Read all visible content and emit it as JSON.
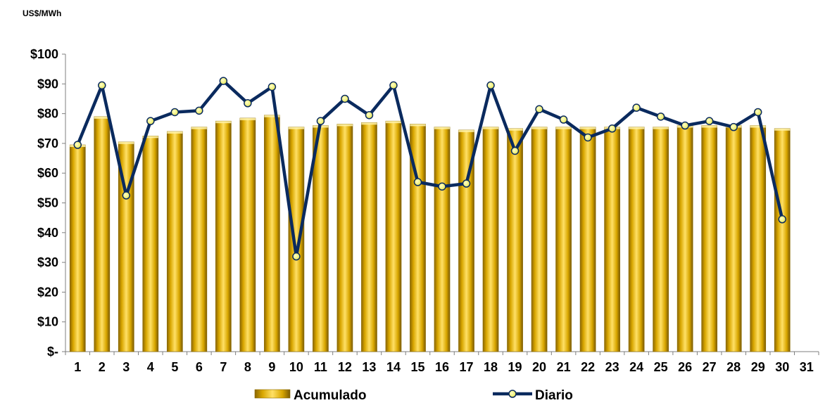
{
  "chart_data": {
    "type": "bar",
    "unit_label": "US$/MWh",
    "categories": [
      "1",
      "2",
      "3",
      "4",
      "5",
      "6",
      "7",
      "8",
      "9",
      "10",
      "11",
      "12",
      "13",
      "14",
      "15",
      "16",
      "17",
      "18",
      "19",
      "20",
      "21",
      "22",
      "23",
      "24",
      "25",
      "26",
      "27",
      "28",
      "29",
      "30",
      "31"
    ],
    "y_ticks": [
      "$-",
      "$10",
      "$20",
      "$30",
      "$40",
      "$50",
      "$60",
      "$70",
      "$80",
      "$90",
      "$100"
    ],
    "ylim": [
      0,
      100
    ],
    "grid": false,
    "legend_position": "bottom",
    "series": [
      {
        "name": "Acumulado",
        "kind": "bar",
        "color": "#E3B200",
        "values": [
          69.5,
          79,
          70.5,
          72.5,
          74,
          75.5,
          77.5,
          78.5,
          79.5,
          75.5,
          76,
          76.5,
          77,
          77.5,
          76.5,
          75.5,
          74.5,
          75.5,
          75,
          75.5,
          75.5,
          75.5,
          75.5,
          75.5,
          75.5,
          76,
          76,
          76,
          76,
          75,
          null
        ]
      },
      {
        "name": "Diario",
        "kind": "line",
        "color": "#0A2A5E",
        "marker_color": "#F2F27A",
        "values": [
          69.5,
          89.5,
          52.5,
          77.5,
          80.5,
          81,
          91,
          83.5,
          89,
          32,
          77.5,
          85,
          79.5,
          89.5,
          57,
          55.5,
          56.5,
          89.5,
          67.5,
          81.5,
          78,
          72,
          75,
          82,
          79,
          76,
          77.5,
          75.5,
          80.5,
          44.5,
          null
        ]
      }
    ]
  }
}
